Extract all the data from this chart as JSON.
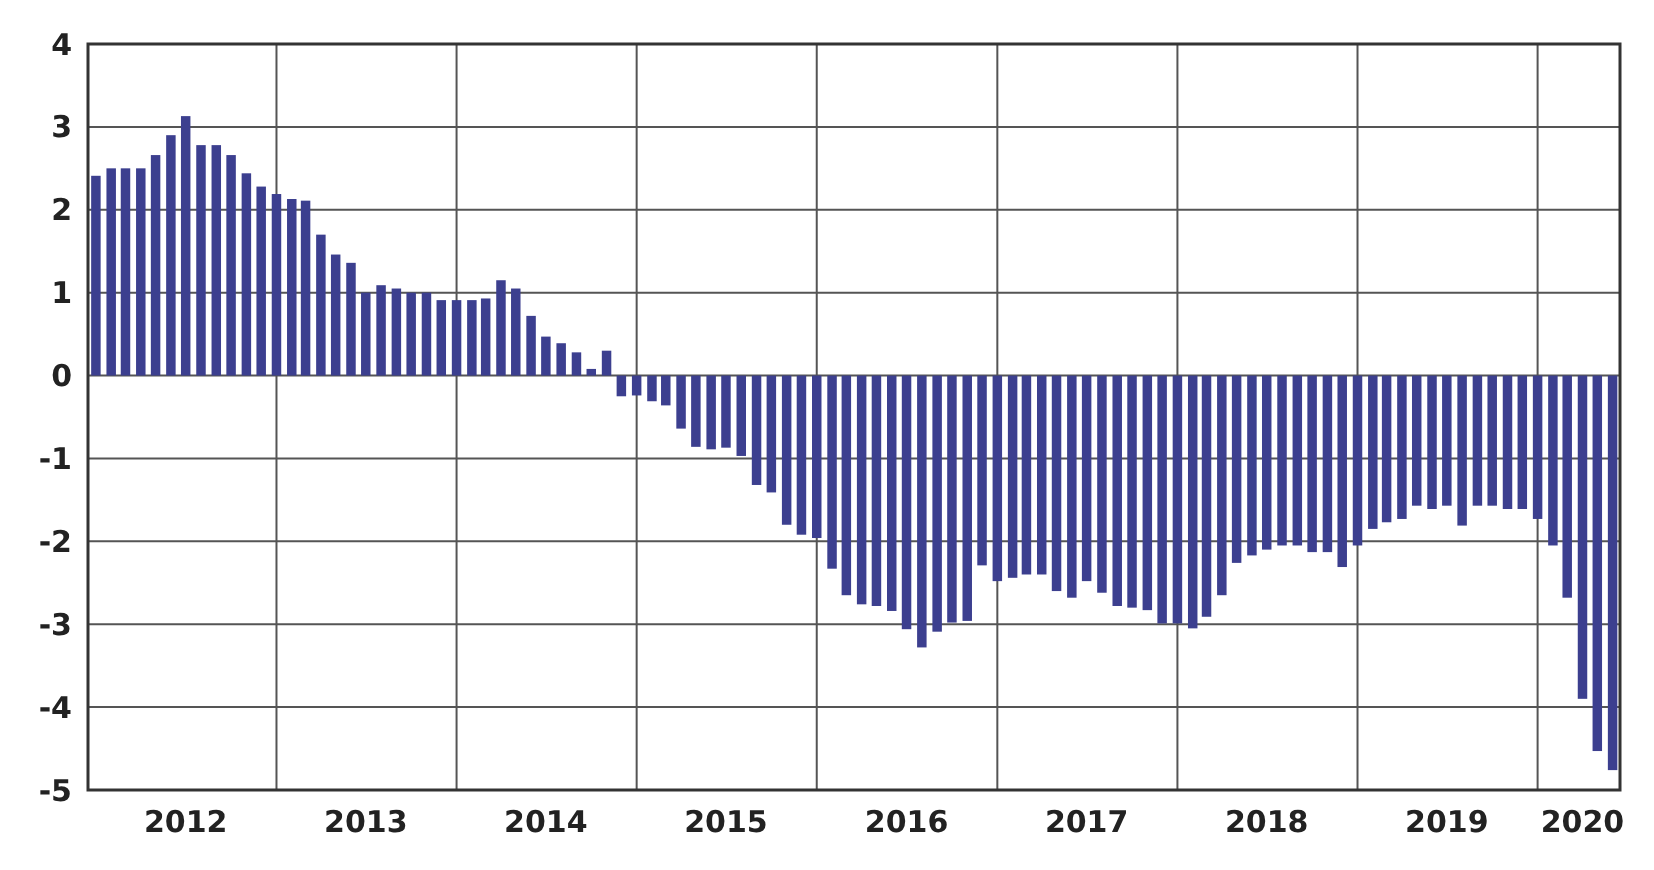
{
  "chart_data": {
    "type": "bar",
    "color": "#3c3f8f",
    "x": [
      "2012-01",
      "2012-02",
      "2012-03",
      "2012-04",
      "2012-05",
      "2012-06",
      "2012-07",
      "2012-08",
      "2012-09",
      "2012-10",
      "2012-11",
      "2012-12",
      "2013-01",
      "2013-02",
      "2013-03",
      "2013-04",
      "2013-05",
      "2013-06",
      "2013-07",
      "2013-08",
      "2013-09",
      "2013-10",
      "2013-11",
      "2013-12",
      "2014-01",
      "2014-02",
      "2014-03",
      "2014-04",
      "2014-05",
      "2014-06",
      "2014-07",
      "2014-08",
      "2014-09",
      "2014-10",
      "2014-11",
      "2014-12",
      "2015-01",
      "2015-02",
      "2015-03",
      "2015-04",
      "2015-05",
      "2015-06",
      "2015-07",
      "2015-08",
      "2015-09",
      "2015-10",
      "2015-11",
      "2015-12",
      "2016-01",
      "2016-02",
      "2016-03",
      "2016-04",
      "2016-05",
      "2016-06",
      "2016-07",
      "2016-08",
      "2016-09",
      "2016-10",
      "2016-11",
      "2016-12",
      "2017-01",
      "2017-02",
      "2017-03",
      "2017-04",
      "2017-05",
      "2017-06",
      "2017-07",
      "2017-08",
      "2017-09",
      "2017-10",
      "2017-11",
      "2017-12",
      "2018-01",
      "2018-02",
      "2018-03",
      "2018-04",
      "2018-05",
      "2018-06",
      "2018-07",
      "2018-08",
      "2018-09",
      "2018-10",
      "2018-11",
      "2018-12",
      "2019-01",
      "2019-02",
      "2019-03",
      "2019-04",
      "2019-05",
      "2019-06",
      "2019-07",
      "2019-08",
      "2019-09",
      "2019-10",
      "2019-11",
      "2019-12",
      "2020-01",
      "2020-02",
      "2020-03",
      "2020-04",
      "2020-05",
      "2020-06"
    ],
    "values": [
      2.41,
      2.5,
      2.5,
      2.5,
      2.66,
      2.9,
      3.13,
      2.78,
      2.78,
      2.66,
      2.44,
      2.28,
      2.19,
      2.13,
      2.11,
      1.7,
      1.46,
      1.36,
      1.0,
      1.09,
      1.05,
      1.0,
      1.0,
      0.91,
      0.91,
      0.91,
      0.93,
      1.15,
      1.05,
      0.72,
      0.47,
      0.39,
      0.28,
      0.08,
      0.3,
      -0.25,
      -0.24,
      -0.31,
      -0.36,
      -0.64,
      -0.86,
      -0.89,
      -0.87,
      -0.97,
      -1.32,
      -1.41,
      -1.8,
      -1.92,
      -1.96,
      -2.33,
      -2.65,
      -2.76,
      -2.78,
      -2.84,
      -3.06,
      -3.28,
      -3.09,
      -2.98,
      -2.96,
      -2.29,
      -2.48,
      -2.44,
      -2.4,
      -2.4,
      -2.6,
      -2.68,
      -2.48,
      -2.62,
      -2.78,
      -2.8,
      -2.83,
      -2.99,
      -2.99,
      -3.05,
      -2.91,
      -2.65,
      -2.26,
      -2.17,
      -2.1,
      -2.05,
      -2.05,
      -2.13,
      -2.13,
      -2.31,
      -2.05,
      -1.85,
      -1.77,
      -1.73,
      -1.57,
      -1.61,
      -1.57,
      -1.81,
      -1.57,
      -1.57,
      -1.61,
      -1.61,
      -1.73,
      -2.05,
      -2.68,
      -3.9,
      -4.53,
      -4.76
    ],
    "xlim": [
      "2011-12-16",
      "2020-06-16"
    ],
    "xticks": [
      {
        "value": "2012-07-01",
        "label": "2012"
      },
      {
        "value": "2013-01-01",
        "label": null
      },
      {
        "value": "2013-07-01",
        "label": "2013"
      },
      {
        "value": "2014-01-01",
        "label": null
      },
      {
        "value": "2014-07-01",
        "label": "2014"
      },
      {
        "value": "2015-01-01",
        "label": null
      },
      {
        "value": "2015-07-01",
        "label": "2015"
      },
      {
        "value": "2016-01-01",
        "label": null
      },
      {
        "value": "2016-07-01",
        "label": "2016"
      },
      {
        "value": "2017-01-01",
        "label": null
      },
      {
        "value": "2017-07-01",
        "label": "2017"
      },
      {
        "value": "2018-01-01",
        "label": null
      },
      {
        "value": "2018-07-01",
        "label": "2018"
      },
      {
        "value": "2019-01-01",
        "label": null
      },
      {
        "value": "2019-07-01",
        "label": "2019"
      },
      {
        "value": "2020-01-01",
        "label": null
      },
      {
        "value": "2020-04-01",
        "label": "2020"
      }
    ],
    "ylim": [
      -5,
      4
    ],
    "yticks": [
      -5,
      -4,
      -3,
      -2,
      -1,
      0,
      1,
      2,
      3,
      4
    ],
    "grid": true
  }
}
